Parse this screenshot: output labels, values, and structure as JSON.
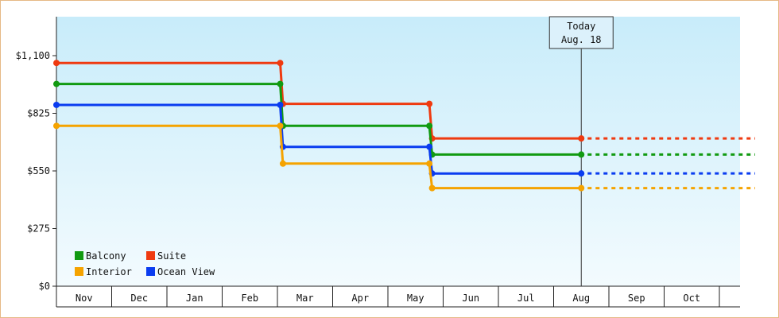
{
  "chart_data": {
    "type": "line",
    "title": "",
    "xlabel": "",
    "ylabel": "",
    "categories": [
      "Nov",
      "Dec",
      "Jan",
      "Feb",
      "Mar",
      "Apr",
      "May",
      "Jun",
      "Jul",
      "Aug",
      "Sep",
      "Oct"
    ],
    "y_ticks": [
      "$0",
      "$275",
      "$550",
      "$825",
      "$1,100"
    ],
    "ylim": [
      0,
      1100
    ],
    "grid": false,
    "legend_position": "bottom-left",
    "marker": {
      "line1": "Today",
      "line2": "Aug. 18"
    },
    "series": [
      {
        "name": "Suite",
        "color": "#ef3a10",
        "points": [
          [
            0.0,
            1065
          ],
          [
            4.05,
            1065
          ],
          [
            4.1,
            870
          ],
          [
            6.75,
            870
          ],
          [
            6.8,
            705
          ],
          [
            9.5,
            705
          ]
        ],
        "projection": [
          [
            9.5,
            705
          ],
          [
            12.0,
            705
          ]
        ]
      },
      {
        "name": "Balcony",
        "color": "#119a11",
        "points": [
          [
            0.0,
            965
          ],
          [
            4.05,
            965
          ],
          [
            4.1,
            765
          ],
          [
            6.75,
            765
          ],
          [
            6.8,
            628
          ],
          [
            9.5,
            628
          ]
        ],
        "projection": [
          [
            9.5,
            628
          ],
          [
            12.0,
            628
          ]
        ]
      },
      {
        "name": "Ocean View",
        "color": "#0a3cf0",
        "points": [
          [
            0.0,
            865
          ],
          [
            4.05,
            865
          ],
          [
            4.1,
            665
          ],
          [
            6.75,
            665
          ],
          [
            6.8,
            538
          ],
          [
            9.5,
            538
          ]
        ],
        "projection": [
          [
            9.5,
            538
          ],
          [
            12.0,
            538
          ]
        ]
      },
      {
        "name": "Interior",
        "color": "#f5a300",
        "points": [
          [
            0.0,
            765
          ],
          [
            4.05,
            765
          ],
          [
            4.1,
            585
          ],
          [
            6.75,
            585
          ],
          [
            6.8,
            468
          ],
          [
            9.5,
            468
          ]
        ],
        "projection": [
          [
            9.5,
            468
          ],
          [
            12.0,
            468
          ]
        ]
      }
    ],
    "legend": [
      {
        "label": "Balcony",
        "color": "#119a11"
      },
      {
        "label": "Suite",
        "color": "#ef3a10"
      },
      {
        "label": "Interior",
        "color": "#f5a300"
      },
      {
        "label": "Ocean View",
        "color": "#0a3cf0"
      }
    ]
  }
}
